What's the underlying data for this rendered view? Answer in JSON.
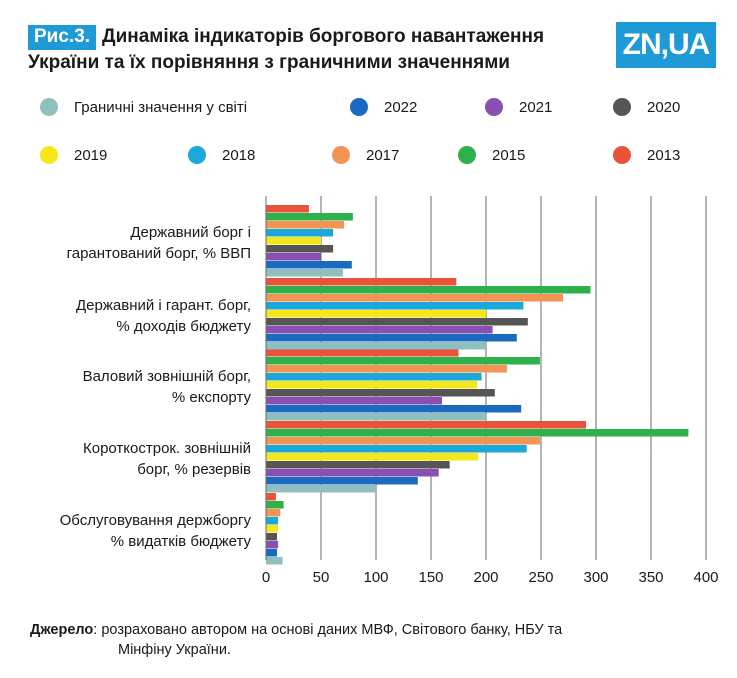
{
  "header": {
    "fig_label": "Рис.3.",
    "title_line1": "Динаміка індикаторів боргового навантаження",
    "title_line2": "України та їх порівняння з граничними значеннями",
    "logo_text": "ZN,UA"
  },
  "colors": {
    "accent": "#1e9bd7",
    "grid": "#555555"
  },
  "chart_data": {
    "type": "bar",
    "orientation": "horizontal",
    "categories": [
      [
        "Державний борг і",
        "гарантований борг, % ВВП"
      ],
      [
        "Державний і гарант. борг,",
        "% доходів бюджету"
      ],
      [
        "Валовий зовнішній борг,",
        "% експорту"
      ],
      [
        "Короткостроковий зовнішній",
        "борг, % резервів"
      ],
      [
        "Обслуговування держборгу",
        "% видатків бюджету"
      ]
    ],
    "categories_display": [
      [
        "Державний борг і",
        "гарантований борг, % ВВП"
      ],
      [
        "Державний і гарант. борг,",
        "% доходів бюджету"
      ],
      [
        "Валовий зовнішній борг,",
        "% експорту"
      ],
      [
        "Короткострок. зовнішній",
        "борг, % резервів"
      ],
      [
        "Обслуговування держборгу",
        "% видатків бюджету"
      ]
    ],
    "series": [
      {
        "name": "2013",
        "color": "#e9533a",
        "values": [
          39,
          173,
          175,
          291,
          9
        ]
      },
      {
        "name": "2015",
        "color": "#2eb04b",
        "values": [
          79,
          295,
          249,
          384,
          16
        ]
      },
      {
        "name": "2017",
        "color": "#f39455",
        "values": [
          71,
          270,
          219,
          249,
          13
        ]
      },
      {
        "name": "2018",
        "color": "#1aa9d9",
        "values": [
          61,
          234,
          196,
          237,
          11
        ]
      },
      {
        "name": "2019",
        "color": "#f6e71a",
        "values": [
          50,
          200,
          192,
          193,
          11
        ]
      },
      {
        "name": "2020",
        "color": "#555555",
        "values": [
          61,
          238,
          208,
          167,
          10
        ]
      },
      {
        "name": "2021",
        "color": "#8a4fb3",
        "values": [
          50,
          206,
          160,
          157,
          11
        ]
      },
      {
        "name": "2022",
        "color": "#1a6bbf",
        "values": [
          78,
          228,
          232,
          138,
          10
        ]
      },
      {
        "name": "Граничні значення у світі",
        "color": "#8fbfbf",
        "values": [
          70,
          200,
          200,
          100,
          15
        ]
      }
    ],
    "xlim": [
      0,
      400
    ],
    "xticks": [
      0,
      50,
      100,
      150,
      200,
      250,
      300,
      350,
      400
    ],
    "grid": true,
    "legend_placement": "top"
  },
  "legend": [
    {
      "label": "Граничні значення у світі",
      "color": "#8fbfbf"
    },
    {
      "label": "2022",
      "color": "#1a6bbf"
    },
    {
      "label": "2021",
      "color": "#8a4fb3"
    },
    {
      "label": "2020",
      "color": "#555555"
    },
    {
      "label": "2019",
      "color": "#f6e71a"
    },
    {
      "label": "2018",
      "color": "#1aa9d9"
    },
    {
      "label": "2017",
      "color": "#f39455"
    },
    {
      "label": "2015",
      "color": "#2eb04b"
    },
    {
      "label": "2013",
      "color": "#e9533a"
    }
  ],
  "source": {
    "label": "Джерело",
    "text_line1": ": розраховано автором на основі даних МВФ, Світового банку, НБУ та",
    "text_line2": "Мінфіну України."
  }
}
